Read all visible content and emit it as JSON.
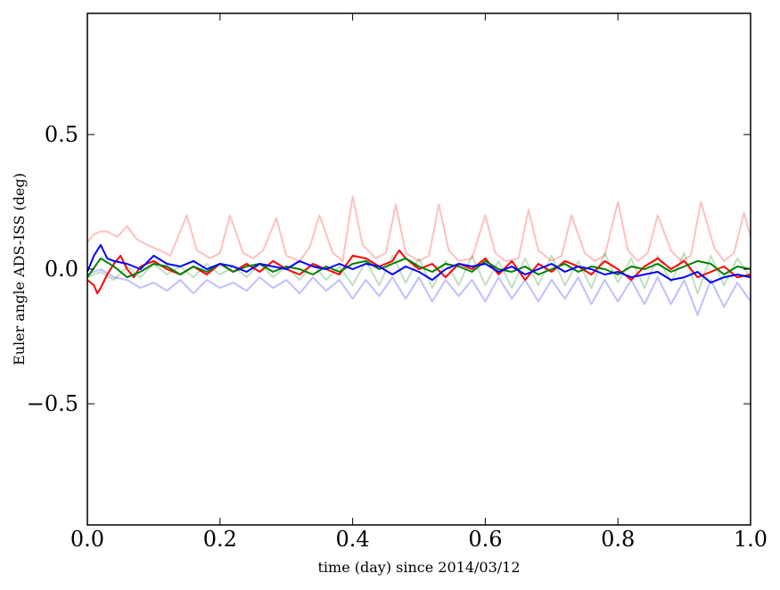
{
  "chart_data": {
    "type": "line",
    "title": "",
    "xlabel": "time (day) since 2014/03/12",
    "ylabel": "Euler angle ADS-ISS (deg)",
    "xlim": [
      0.0,
      1.0
    ],
    "ylim": [
      -0.95,
      0.95
    ],
    "xticks": [
      0.0,
      0.2,
      0.4,
      0.6,
      0.8,
      1.0
    ],
    "xtick_labels": [
      "0.0",
      "0.2",
      "0.4",
      "0.6",
      "0.8",
      "1.0"
    ],
    "yticks": [
      -0.5,
      0.0,
      0.5
    ],
    "ytick_labels": [
      "−0.5",
      "0.0",
      "0.5"
    ],
    "grid": false,
    "legend": "none",
    "series": [
      {
        "color": "#ff0000",
        "opacity": 0.25,
        "linewidth": 2,
        "x": [
          0.0,
          0.01,
          0.02,
          0.03,
          0.045,
          0.06,
          0.075,
          0.09,
          0.11,
          0.125,
          0.15,
          0.165,
          0.185,
          0.2,
          0.215,
          0.235,
          0.25,
          0.265,
          0.285,
          0.3,
          0.32,
          0.335,
          0.35,
          0.37,
          0.385,
          0.4,
          0.415,
          0.435,
          0.45,
          0.465,
          0.48,
          0.5,
          0.515,
          0.53,
          0.545,
          0.56,
          0.58,
          0.6,
          0.615,
          0.63,
          0.65,
          0.665,
          0.68,
          0.7,
          0.715,
          0.73,
          0.75,
          0.765,
          0.78,
          0.8,
          0.815,
          0.83,
          0.845,
          0.86,
          0.88,
          0.895,
          0.91,
          0.925,
          0.945,
          0.96,
          0.975,
          0.99,
          1.0
        ],
        "y": [
          0.1,
          0.13,
          0.14,
          0.14,
          0.12,
          0.16,
          0.11,
          0.09,
          0.07,
          0.05,
          0.2,
          0.07,
          0.04,
          0.06,
          0.2,
          0.06,
          0.04,
          0.07,
          0.19,
          0.05,
          0.03,
          0.08,
          0.2,
          0.06,
          0.03,
          0.27,
          0.09,
          0.04,
          0.06,
          0.24,
          0.06,
          0.03,
          0.05,
          0.24,
          0.07,
          0.03,
          0.04,
          0.2,
          0.06,
          0.03,
          0.04,
          0.22,
          0.07,
          0.03,
          0.05,
          0.2,
          0.06,
          0.03,
          0.05,
          0.25,
          0.07,
          0.03,
          0.06,
          0.2,
          0.07,
          0.03,
          0.05,
          0.25,
          0.08,
          0.03,
          0.06,
          0.21,
          0.12
        ]
      },
      {
        "color": "#0000ff",
        "opacity": 0.25,
        "linewidth": 2,
        "x": [
          0.0,
          0.02,
          0.04,
          0.06,
          0.08,
          0.1,
          0.12,
          0.14,
          0.16,
          0.18,
          0.2,
          0.22,
          0.24,
          0.26,
          0.28,
          0.3,
          0.32,
          0.34,
          0.36,
          0.38,
          0.4,
          0.42,
          0.44,
          0.46,
          0.48,
          0.5,
          0.52,
          0.54,
          0.56,
          0.58,
          0.6,
          0.62,
          0.64,
          0.66,
          0.68,
          0.7,
          0.72,
          0.74,
          0.76,
          0.78,
          0.8,
          0.82,
          0.84,
          0.86,
          0.88,
          0.9,
          0.92,
          0.94,
          0.96,
          0.98,
          1.0
        ],
        "y": [
          -0.02,
          0.0,
          -0.03,
          -0.04,
          -0.07,
          -0.05,
          -0.08,
          -0.04,
          -0.09,
          -0.04,
          -0.07,
          -0.05,
          -0.08,
          -0.03,
          -0.07,
          -0.04,
          -0.09,
          -0.03,
          -0.08,
          -0.04,
          -0.11,
          -0.04,
          -0.1,
          -0.03,
          -0.11,
          -0.03,
          -0.12,
          -0.04,
          -0.1,
          -0.04,
          -0.12,
          -0.03,
          -0.11,
          -0.04,
          -0.12,
          -0.04,
          -0.11,
          -0.03,
          -0.13,
          -0.04,
          -0.12,
          -0.04,
          -0.13,
          -0.03,
          -0.13,
          -0.04,
          -0.17,
          -0.04,
          -0.14,
          -0.05,
          -0.12
        ]
      },
      {
        "color": "#008000",
        "opacity": 0.25,
        "linewidth": 2,
        "x": [
          0.0,
          0.02,
          0.04,
          0.06,
          0.08,
          0.1,
          0.12,
          0.14,
          0.16,
          0.18,
          0.2,
          0.22,
          0.24,
          0.26,
          0.28,
          0.3,
          0.32,
          0.34,
          0.36,
          0.38,
          0.4,
          0.42,
          0.44,
          0.46,
          0.48,
          0.5,
          0.52,
          0.54,
          0.56,
          0.58,
          0.6,
          0.62,
          0.64,
          0.66,
          0.68,
          0.7,
          0.72,
          0.74,
          0.76,
          0.78,
          0.8,
          0.82,
          0.84,
          0.86,
          0.88,
          0.9,
          0.92,
          0.94,
          0.96,
          0.98,
          1.0
        ],
        "y": [
          -0.03,
          -0.01,
          -0.04,
          0.01,
          -0.03,
          0.02,
          -0.02,
          0.01,
          -0.03,
          0.02,
          -0.02,
          0.01,
          -0.03,
          0.02,
          -0.03,
          0.01,
          -0.04,
          0.02,
          -0.04,
          0.01,
          -0.06,
          0.03,
          -0.06,
          0.05,
          -0.05,
          0.04,
          -0.07,
          0.03,
          -0.06,
          0.05,
          -0.06,
          0.03,
          -0.07,
          0.04,
          -0.06,
          0.05,
          -0.06,
          0.03,
          -0.07,
          0.06,
          -0.05,
          0.04,
          -0.07,
          0.05,
          -0.05,
          0.06,
          -0.09,
          0.05,
          -0.06,
          0.04,
          -0.03
        ]
      },
      {
        "color": "#ff0000",
        "opacity": 1,
        "linewidth": 2,
        "x": [
          0.0,
          0.01,
          0.015,
          0.02,
          0.03,
          0.04,
          0.05,
          0.06,
          0.07,
          0.08,
          0.1,
          0.12,
          0.14,
          0.16,
          0.18,
          0.2,
          0.22,
          0.24,
          0.26,
          0.28,
          0.3,
          0.32,
          0.34,
          0.36,
          0.38,
          0.4,
          0.42,
          0.44,
          0.46,
          0.47,
          0.48,
          0.5,
          0.52,
          0.54,
          0.56,
          0.58,
          0.6,
          0.62,
          0.64,
          0.66,
          0.68,
          0.7,
          0.72,
          0.74,
          0.76,
          0.78,
          0.8,
          0.82,
          0.84,
          0.86,
          0.88,
          0.9,
          0.92,
          0.94,
          0.96,
          0.98,
          1.0
        ],
        "y": [
          -0.04,
          -0.06,
          -0.09,
          -0.07,
          -0.02,
          0.02,
          0.05,
          0.0,
          -0.03,
          0.01,
          0.03,
          0.0,
          -0.02,
          0.01,
          -0.02,
          0.02,
          -0.01,
          0.02,
          -0.01,
          0.03,
          0.0,
          -0.02,
          0.02,
          0.0,
          -0.02,
          0.05,
          0.04,
          0.01,
          0.03,
          0.07,
          0.04,
          0.0,
          0.02,
          -0.03,
          0.02,
          0.0,
          0.04,
          -0.02,
          0.03,
          -0.04,
          0.02,
          -0.01,
          0.03,
          0.01,
          -0.02,
          0.03,
          0.0,
          -0.04,
          0.01,
          0.04,
          0.0,
          0.03,
          -0.03,
          -0.01,
          0.01,
          -0.03,
          -0.02
        ]
      },
      {
        "color": "#008000",
        "opacity": 1,
        "linewidth": 2,
        "x": [
          0.0,
          0.02,
          0.04,
          0.06,
          0.08,
          0.1,
          0.12,
          0.14,
          0.16,
          0.18,
          0.2,
          0.22,
          0.24,
          0.26,
          0.28,
          0.3,
          0.32,
          0.34,
          0.36,
          0.38,
          0.4,
          0.42,
          0.44,
          0.46,
          0.48,
          0.5,
          0.52,
          0.54,
          0.56,
          0.58,
          0.6,
          0.62,
          0.64,
          0.66,
          0.68,
          0.7,
          0.72,
          0.74,
          0.76,
          0.78,
          0.8,
          0.82,
          0.84,
          0.86,
          0.88,
          0.9,
          0.92,
          0.94,
          0.96,
          0.98,
          1.0
        ],
        "y": [
          -0.03,
          0.04,
          0.01,
          -0.03,
          -0.01,
          0.02,
          0.01,
          -0.02,
          0.01,
          -0.01,
          0.02,
          -0.01,
          0.01,
          0.02,
          -0.01,
          0.01,
          0.0,
          -0.02,
          0.01,
          -0.01,
          0.02,
          0.03,
          0.0,
          0.02,
          0.04,
          0.01,
          -0.01,
          0.02,
          0.01,
          -0.01,
          0.03,
          0.0,
          -0.01,
          0.01,
          -0.02,
          0.0,
          0.02,
          -0.01,
          0.01,
          0.0,
          -0.02,
          0.01,
          0.0,
          0.02,
          -0.01,
          0.01,
          0.03,
          0.02,
          -0.02,
          0.01,
          0.0
        ]
      },
      {
        "color": "#0000ff",
        "opacity": 1,
        "linewidth": 2,
        "x": [
          0.0,
          0.01,
          0.02,
          0.03,
          0.04,
          0.06,
          0.08,
          0.1,
          0.12,
          0.14,
          0.16,
          0.18,
          0.2,
          0.22,
          0.24,
          0.26,
          0.28,
          0.3,
          0.32,
          0.34,
          0.36,
          0.38,
          0.4,
          0.42,
          0.44,
          0.46,
          0.48,
          0.5,
          0.52,
          0.54,
          0.56,
          0.58,
          0.6,
          0.62,
          0.64,
          0.66,
          0.68,
          0.7,
          0.72,
          0.74,
          0.76,
          0.78,
          0.8,
          0.82,
          0.84,
          0.86,
          0.88,
          0.9,
          0.92,
          0.94,
          0.96,
          0.98,
          1.0
        ],
        "y": [
          -0.01,
          0.05,
          0.09,
          0.04,
          0.03,
          0.02,
          0.0,
          0.05,
          0.02,
          0.01,
          0.03,
          0.0,
          0.02,
          0.01,
          -0.01,
          0.02,
          0.01,
          0.0,
          0.03,
          0.01,
          0.0,
          0.02,
          0.0,
          0.02,
          0.01,
          -0.02,
          0.01,
          -0.01,
          -0.04,
          0.0,
          0.02,
          0.01,
          0.02,
          -0.01,
          0.01,
          -0.02,
          0.0,
          0.02,
          -0.01,
          0.01,
          0.0,
          -0.02,
          -0.01,
          -0.03,
          -0.02,
          -0.01,
          -0.04,
          -0.03,
          -0.01,
          -0.05,
          -0.03,
          -0.02,
          -0.03
        ]
      }
    ]
  }
}
